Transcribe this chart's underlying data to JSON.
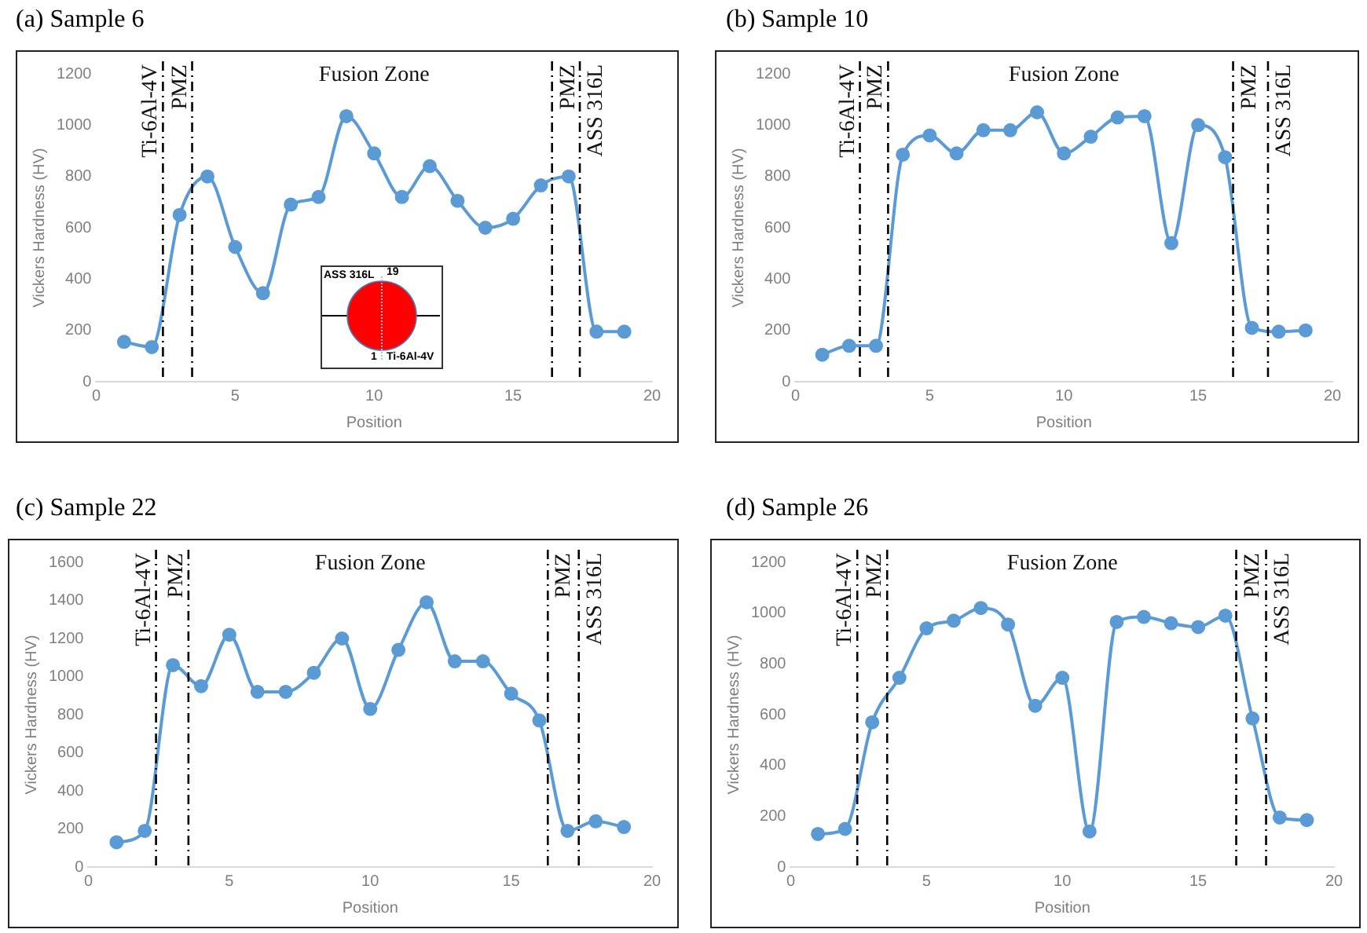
{
  "chart_data": [
    {
      "type": "line",
      "title": "(a) Sample 6",
      "xlabel": "Position",
      "ylabel": "Vickers Hardness (HV)",
      "x": [
        1,
        2,
        3,
        4,
        5,
        6,
        7,
        8,
        9,
        10,
        11,
        12,
        13,
        14,
        15,
        16,
        17,
        18,
        19
      ],
      "xlim": [
        0,
        20
      ],
      "xticks": [
        0,
        5,
        10,
        15,
        20
      ],
      "ylim": [
        0,
        1200
      ],
      "yticks": [
        0,
        200,
        400,
        600,
        800,
        1000,
        1200
      ],
      "marker": "circle",
      "series": [
        {
          "color": "#5b9bd5",
          "values": [
            155,
            135,
            650,
            800,
            525,
            345,
            690,
            720,
            1035,
            890,
            720,
            840,
            705,
            600,
            635,
            765,
            800,
            195,
            195
          ]
        }
      ],
      "ref_lines": [
        {
          "axis": "x",
          "value": 2.4,
          "label": "Ti-6Al-4V",
          "color": "#000000",
          "line_style": "dashed"
        },
        {
          "axis": "x",
          "value": 3.45,
          "label": "PMZ",
          "color": "#000000",
          "line_style": "dashed"
        },
        {
          "axis": "x",
          "value": 16.4,
          "label": "PMZ",
          "color": "#000000",
          "line_style": "dashed"
        },
        {
          "axis": "x",
          "value": 17.4,
          "label": "ASS 316L",
          "color": "#000000",
          "line_style": "dashed"
        }
      ],
      "annotations": [
        "Fusion Zone",
        "ASS 316L",
        "19",
        "1",
        "Ti-6Al-4V"
      ]
    },
    {
      "type": "line",
      "title": "(b) Sample 10",
      "xlabel": "Position",
      "ylabel": "Vickers Hardness (HV)",
      "x": [
        1,
        2,
        3,
        4,
        5,
        6,
        7,
        8,
        9,
        10,
        11,
        12,
        13,
        14,
        15,
        16,
        17,
        18,
        19
      ],
      "xlim": [
        0,
        20
      ],
      "xticks": [
        0,
        5,
        10,
        15,
        20
      ],
      "ylim": [
        0,
        1200
      ],
      "yticks": [
        0,
        200,
        400,
        600,
        800,
        1000,
        1200
      ],
      "marker": "circle",
      "series": [
        {
          "color": "#5b9bd5",
          "values": [
            105,
            140,
            140,
            885,
            960,
            890,
            980,
            980,
            1050,
            890,
            955,
            1030,
            1035,
            540,
            1000,
            875,
            210,
            195,
            200
          ]
        }
      ],
      "ref_lines": [
        {
          "axis": "x",
          "value": 2.4,
          "label": "Ti-6Al-4V",
          "color": "#000000",
          "line_style": "dashed"
        },
        {
          "axis": "x",
          "value": 3.45,
          "label": "PMZ",
          "color": "#000000",
          "line_style": "dashed"
        },
        {
          "axis": "x",
          "value": 16.3,
          "label": "PMZ",
          "color": "#000000",
          "line_style": "dashed"
        },
        {
          "axis": "x",
          "value": 17.6,
          "label": "ASS 316L",
          "color": "#000000",
          "line_style": "dashed"
        }
      ],
      "annotations": [
        "Fusion Zone"
      ]
    },
    {
      "type": "line",
      "title": "(c) Sample 22",
      "xlabel": "Position",
      "ylabel": "Vickers Hardness (HV)",
      "x": [
        1,
        2,
        3,
        4,
        5,
        6,
        7,
        8,
        9,
        10,
        11,
        12,
        13,
        14,
        15,
        16,
        17,
        18,
        19
      ],
      "xlim": [
        0,
        20
      ],
      "xticks": [
        0,
        5,
        10,
        15,
        20
      ],
      "ylim": [
        0,
        1600
      ],
      "yticks": [
        0,
        200,
        400,
        600,
        800,
        1000,
        1200,
        1400,
        1600
      ],
      "marker": "circle",
      "series": [
        {
          "color": "#5b9bd5",
          "values": [
            130,
            190,
            1060,
            950,
            1220,
            920,
            920,
            1020,
            1200,
            830,
            1140,
            1390,
            1080,
            1080,
            910,
            770,
            190,
            240,
            210
          ]
        }
      ],
      "ref_lines": [
        {
          "axis": "x",
          "value": 2.4,
          "label": "Ti-6Al-4V",
          "color": "#000000",
          "line_style": "dashed"
        },
        {
          "axis": "x",
          "value": 3.55,
          "label": "PMZ",
          "color": "#000000",
          "line_style": "dashed"
        },
        {
          "axis": "x",
          "value": 16.3,
          "label": "PMZ",
          "color": "#000000",
          "line_style": "dashed"
        },
        {
          "axis": "x",
          "value": 17.4,
          "label": "ASS 316L",
          "color": "#000000",
          "line_style": "dashed"
        }
      ],
      "annotations": [
        "Fusion Zone"
      ]
    },
    {
      "type": "line",
      "title": "(d) Sample 26",
      "xlabel": "Position",
      "ylabel": "Vickers Hardness (HV)",
      "x": [
        1,
        2,
        3,
        4,
        5,
        6,
        7,
        8,
        9,
        10,
        11,
        12,
        13,
        14,
        15,
        16,
        17,
        18,
        19
      ],
      "xlim": [
        0,
        20
      ],
      "xticks": [
        0,
        5,
        10,
        15,
        20
      ],
      "ylim": [
        0,
        1200
      ],
      "yticks": [
        0,
        200,
        400,
        600,
        800,
        1000,
        1200
      ],
      "marker": "circle",
      "series": [
        {
          "color": "#5b9bd5",
          "values": [
            130,
            150,
            570,
            745,
            940,
            970,
            1020,
            955,
            635,
            745,
            140,
            965,
            985,
            960,
            945,
            990,
            585,
            195,
            185
          ]
        }
      ],
      "ref_lines": [
        {
          "axis": "x",
          "value": 2.45,
          "label": "Ti-6Al-4V",
          "color": "#000000",
          "line_style": "dashed"
        },
        {
          "axis": "x",
          "value": 3.55,
          "label": "PMZ",
          "color": "#000000",
          "line_style": "dashed"
        },
        {
          "axis": "x",
          "value": 16.4,
          "label": "PMZ",
          "color": "#000000",
          "line_style": "dashed"
        },
        {
          "axis": "x",
          "value": 17.5,
          "label": "ASS 316L",
          "color": "#000000",
          "line_style": "dashed"
        }
      ],
      "annotations": [
        "Fusion Zone"
      ]
    }
  ]
}
